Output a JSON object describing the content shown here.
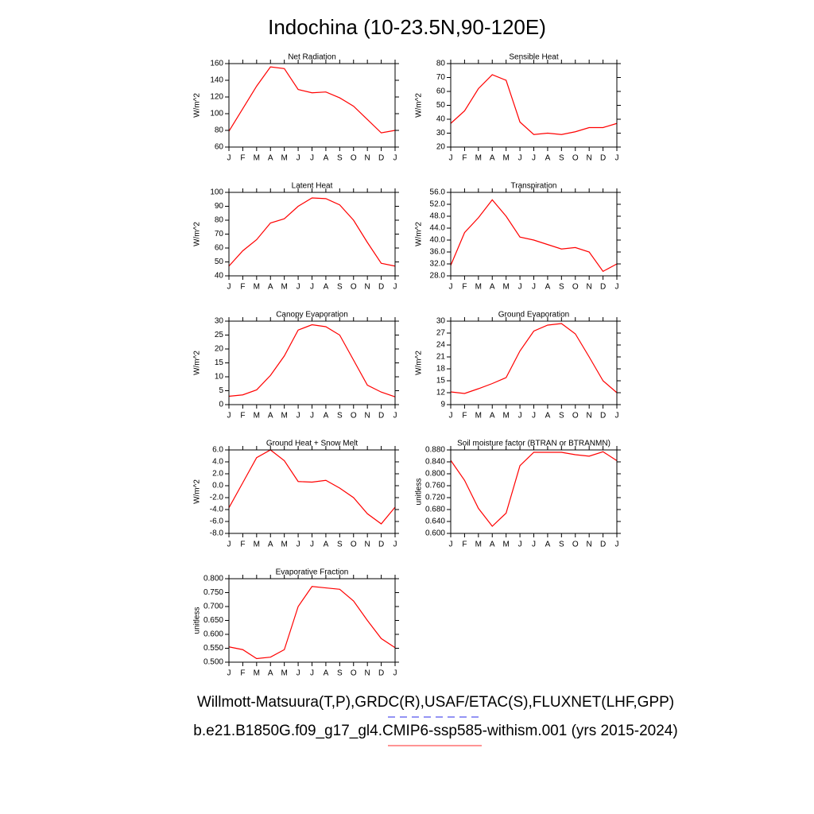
{
  "title": "Indochina (10-23.5N,90-120E)",
  "legend": [
    {
      "label": "Willmott-Matsuura(T,P),GRDC(R),USAF/ETAC(S),FLUXNET(LHF,GPP)",
      "color": "#5555ee",
      "dash": true
    },
    {
      "label": "b.e21.B1850G.f09_g17_gl4.CMIP6-ssp585-withism.001 (yrs 2015-2024)",
      "color": "#ff5555",
      "dash": false
    }
  ],
  "chart_data": [
    {
      "type": "line",
      "title": "Net Radiation",
      "y_label": "W/m^2",
      "color": "#ff0000",
      "categories": [
        "J",
        "F",
        "M",
        "A",
        "M",
        "J",
        "J",
        "A",
        "S",
        "O",
        "N",
        "D",
        "J"
      ],
      "values": [
        79,
        106,
        133,
        156,
        154,
        129,
        125,
        126,
        119,
        109,
        93,
        77,
        80
      ],
      "ylim": [
        60,
        160
      ],
      "yticks": [
        60,
        80,
        100,
        120,
        140,
        160
      ]
    },
    {
      "type": "line",
      "title": "Sensible Heat",
      "y_label": "W/m^2",
      "color": "#ff0000",
      "categories": [
        "J",
        "F",
        "M",
        "A",
        "M",
        "J",
        "J",
        "A",
        "S",
        "O",
        "N",
        "D",
        "J"
      ],
      "values": [
        37,
        46,
        62,
        72,
        68,
        38,
        29,
        30,
        29,
        31,
        34,
        34,
        37
      ],
      "ylim": [
        20,
        80
      ],
      "yticks": [
        20,
        30,
        40,
        50,
        60,
        70,
        80
      ]
    },
    {
      "type": "line",
      "title": "Latent Heat",
      "y_label": "W/m^2",
      "color": "#ff0000",
      "categories": [
        "J",
        "F",
        "M",
        "A",
        "M",
        "J",
        "J",
        "A",
        "S",
        "O",
        "N",
        "D",
        "J"
      ],
      "values": [
        47,
        58,
        66,
        78,
        81,
        90,
        96,
        95.5,
        91,
        80,
        64,
        49,
        47
      ],
      "ylim": [
        40,
        100
      ],
      "yticks": [
        40,
        50,
        60,
        70,
        80,
        90,
        100
      ]
    },
    {
      "type": "line",
      "title": "Transpiration",
      "y_label": "W/m^2",
      "color": "#ff0000",
      "categories": [
        "J",
        "F",
        "M",
        "A",
        "M",
        "J",
        "J",
        "A",
        "S",
        "O",
        "N",
        "D",
        "J"
      ],
      "values": [
        31.5,
        42.5,
        47.5,
        53.5,
        48,
        41,
        40,
        38.5,
        37,
        37.5,
        36,
        29.5,
        32
      ],
      "ylim": [
        28,
        56
      ],
      "yticks": [
        {
          "value": 28,
          "label": "28.0"
        },
        {
          "value": 32,
          "label": "32.0"
        },
        {
          "value": 36,
          "label": "36.0"
        },
        {
          "value": 40,
          "label": "40.0"
        },
        {
          "value": 44,
          "label": "44.0"
        },
        {
          "value": 48,
          "label": "48.0"
        },
        {
          "value": 52,
          "label": "52.0"
        },
        {
          "value": 56,
          "label": "56.0"
        }
      ]
    },
    {
      "type": "line",
      "title": "Canopy Evaporation",
      "y_label": "W/m^2",
      "color": "#ff0000",
      "categories": [
        "J",
        "F",
        "M",
        "A",
        "M",
        "J",
        "J",
        "A",
        "S",
        "O",
        "N",
        "D",
        "J"
      ],
      "values": [
        3,
        3.5,
        5.3,
        10.5,
        17.5,
        26.8,
        28.7,
        28,
        25,
        16,
        7,
        4.5,
        2.8
      ],
      "ylim": [
        0,
        30
      ],
      "yticks": [
        0,
        5,
        10,
        15,
        20,
        25,
        30
      ]
    },
    {
      "type": "line",
      "title": "Ground Evaporation",
      "y_label": "W/m^2",
      "color": "#ff0000",
      "categories": [
        "J",
        "F",
        "M",
        "A",
        "M",
        "J",
        "J",
        "A",
        "S",
        "O",
        "N",
        "D",
        "J"
      ],
      "values": [
        12.2,
        11.8,
        13,
        14.3,
        15.8,
        22.5,
        27.5,
        29,
        29.4,
        26.8,
        21,
        15,
        12
      ],
      "ylim": [
        9,
        30
      ],
      "yticks": [
        9,
        12,
        15,
        18,
        21,
        24,
        27,
        30
      ]
    },
    {
      "type": "line",
      "title": "Ground Heat + Snow Melt",
      "y_label": "W/m^2",
      "color": "#ff0000",
      "categories": [
        "J",
        "F",
        "M",
        "A",
        "M",
        "J",
        "J",
        "A",
        "S",
        "O",
        "N",
        "D",
        "J"
      ],
      "values": [
        -3.7,
        0.5,
        4.7,
        6,
        4.2,
        0.7,
        0.6,
        0.9,
        -0.4,
        -2,
        -4.7,
        -6.4,
        -3.6
      ],
      "ylim": [
        -8,
        6
      ],
      "yticks": [
        {
          "value": -8,
          "label": "-8.0"
        },
        {
          "value": -6,
          "label": "-6.0"
        },
        {
          "value": -4,
          "label": "-4.0"
        },
        {
          "value": -2,
          "label": "-2.0"
        },
        {
          "value": 0,
          "label": "0.0"
        },
        {
          "value": 2,
          "label": "2.0"
        },
        {
          "value": 4,
          "label": "4.0"
        },
        {
          "value": 6,
          "label": "6.0"
        }
      ]
    },
    {
      "type": "line",
      "title": "Soil moisture factor (BTRAN or BTRANMN)",
      "y_label": "unitless",
      "color": "#ff0000",
      "categories": [
        "J",
        "F",
        "M",
        "A",
        "M",
        "J",
        "J",
        "A",
        "S",
        "O",
        "N",
        "D",
        "J"
      ],
      "values": [
        0.845,
        0.778,
        0.684,
        0.624,
        0.668,
        0.827,
        0.872,
        0.872,
        0.872,
        0.864,
        0.859,
        0.874,
        0.844
      ],
      "ylim": [
        0.6,
        0.88
      ],
      "yticks": [
        {
          "value": 0.6,
          "label": "0.600"
        },
        {
          "value": 0.64,
          "label": "0.640"
        },
        {
          "value": 0.68,
          "label": "0.680"
        },
        {
          "value": 0.72,
          "label": "0.720"
        },
        {
          "value": 0.76,
          "label": "0.760"
        },
        {
          "value": 0.8,
          "label": "0.800"
        },
        {
          "value": 0.84,
          "label": "0.840"
        },
        {
          "value": 0.88,
          "label": "0.880"
        }
      ]
    },
    {
      "type": "line",
      "title": "Evaporative Fraction",
      "y_label": "unitless",
      "color": "#ff0000",
      "categories": [
        "J",
        "F",
        "M",
        "A",
        "M",
        "J",
        "J",
        "A",
        "S",
        "O",
        "N",
        "D",
        "J"
      ],
      "values": [
        0.555,
        0.545,
        0.513,
        0.518,
        0.545,
        0.7,
        0.772,
        0.767,
        0.762,
        0.72,
        0.65,
        0.585,
        0.552
      ],
      "ylim": [
        0.5,
        0.8
      ],
      "yticks": [
        {
          "value": 0.5,
          "label": "0.500"
        },
        {
          "value": 0.55,
          "label": "0.550"
        },
        {
          "value": 0.6,
          "label": "0.600"
        },
        {
          "value": 0.65,
          "label": "0.650"
        },
        {
          "value": 0.7,
          "label": "0.700"
        },
        {
          "value": 0.75,
          "label": "0.750"
        },
        {
          "value": 0.8,
          "label": "0.800"
        }
      ]
    }
  ]
}
